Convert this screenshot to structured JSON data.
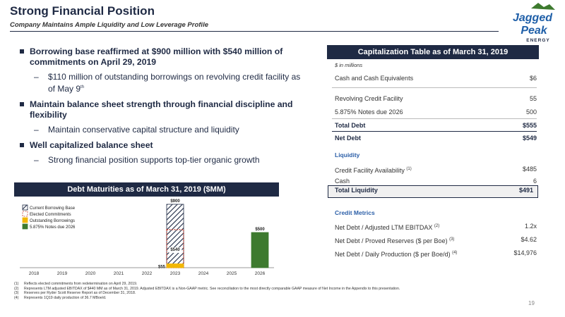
{
  "header": {
    "title": "Strong Financial Position",
    "subtitle": "Company Maintains Ample Liquidity and Low Leverage Profile"
  },
  "logo": {
    "line1": "Jagged",
    "line2": "Peak",
    "line3": "ENERGY"
  },
  "bullets": [
    {
      "text": "Borrowing base reaffirmed at $900 million with $540 million of commitments on April 29, 2019",
      "subs": [
        {
          "text": "$110 million of outstanding borrowings on revolving credit facility as of May 9",
          "sup": "th"
        }
      ]
    },
    {
      "text": "Maintain balance sheet strength through financial discipline and flexibility",
      "subs": [
        {
          "text": "Maintain conservative capital structure and liquidity"
        }
      ]
    },
    {
      "text": "Well capitalized balance sheet",
      "subs": [
        {
          "text": "Strong financial position supports top-tier organic growth"
        }
      ]
    }
  ],
  "chart_data": {
    "type": "bar",
    "title": "Debt Maturities as of March 31, 2019 ($MM)",
    "categories": [
      "2018",
      "2019",
      "2020",
      "2021",
      "2022",
      "2023",
      "2024",
      "2025",
      "2026"
    ],
    "series": [
      {
        "name": "Current Borrowing Base",
        "values": [
          0,
          0,
          0,
          0,
          0,
          900,
          0,
          0,
          0
        ]
      },
      {
        "name": "Elected Commitments",
        "values": [
          0,
          0,
          0,
          0,
          0,
          540,
          0,
          0,
          0
        ]
      },
      {
        "name": "Outstanding Borrowings",
        "values": [
          0,
          0,
          0,
          0,
          0,
          55,
          0,
          0,
          0
        ]
      },
      {
        "name": "5.875% Notes due 2026",
        "values": [
          0,
          0,
          0,
          0,
          0,
          0,
          0,
          0,
          500
        ]
      }
    ],
    "data_labels": [
      {
        "category": "2023",
        "text": "$900",
        "value": 900
      },
      {
        "category": "2023",
        "text": "$540",
        "value": 540
      },
      {
        "category": "2023",
        "text": "$55",
        "value": 55
      },
      {
        "category": "2026",
        "text": "$500",
        "value": 500
      }
    ],
    "ylim": [
      0,
      900
    ],
    "legend_position": "top-left",
    "colors": {
      "borrowing_base": "#1f2a44",
      "elected": "#c0392b",
      "outstanding": "#f2b705",
      "notes": "#3d7a2e"
    }
  },
  "cap_table": {
    "title": "Capitalization Table as of March 31, 2019",
    "unit": "$ in millions",
    "rows": [
      {
        "label": "Cash and Cash Equivalents",
        "value": "$6"
      },
      {
        "label": "Revolving Credit Facility",
        "value": "55"
      },
      {
        "label": "5.875% Notes due 2026",
        "value": "500"
      },
      {
        "label": "Total Debt",
        "value": "$555"
      },
      {
        "label": "Net Debt",
        "value": "$549"
      }
    ],
    "liquidity_title": "Liquidity",
    "liquidity": [
      {
        "label": "Credit Facility Availability",
        "sup": "(1)",
        "value": "$485"
      },
      {
        "label": "Cash",
        "value": "6"
      }
    ],
    "total_liquidity": {
      "label": "Total Liquidity",
      "value": "$491"
    },
    "metrics_title": "Credit Metrics",
    "metrics": [
      {
        "label": "Net Debt / Adjusted LTM EBITDAX",
        "sup": "(2)",
        "value": "1.2x"
      },
      {
        "label": "Net Debt / Proved Reserves ($ per Boe)",
        "sup": "(3)",
        "value": "$4.62"
      },
      {
        "label": "Net Debt / Daily Production ($ per Boe/d)",
        "sup": "(4)",
        "value": "$14,976"
      }
    ]
  },
  "footnotes": [
    {
      "n": "(1)",
      "text": "Reflects elected commitments from redetermination on April 29, 2019."
    },
    {
      "n": "(2)",
      "text": "Represents LTM adjusted EBITDAX of $440 MM as of March 31, 2019. Adjusted EBITDAX is a Non-GAAP metric. See reconciliation to the most directly comparable GAAP measure of Net Income in the Appendix to this presentation."
    },
    {
      "n": "(3)",
      "text": "Reserves per Ryder Scott Reserve Report as of December 31, 2018."
    },
    {
      "n": "(4)",
      "text": "Represents 1Q19 daily production of 36.7 MBoe/d."
    }
  ],
  "page_number": "19"
}
